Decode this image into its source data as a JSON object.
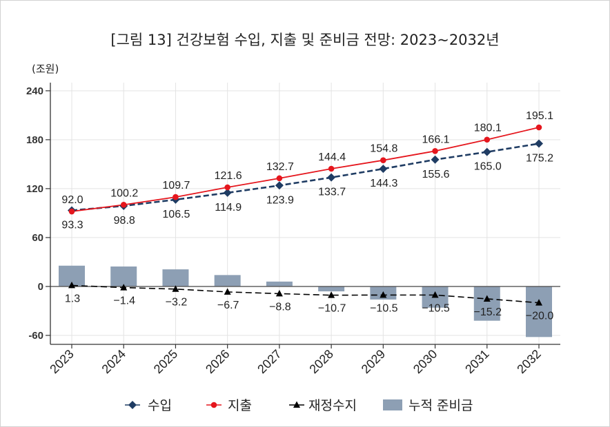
{
  "chart_data": {
    "type": "line",
    "title": "[그림 13] 건강보험 수입, 지출 및 준비금 전망: 2023~2032년",
    "xlabel": "",
    "ylabel": "(조원)",
    "categories": [
      "2023",
      "2024",
      "2025",
      "2026",
      "2027",
      "2028",
      "2029",
      "2030",
      "2031",
      "2032"
    ],
    "ylim": [
      -71,
      250
    ],
    "yticks": [
      240,
      180,
      120,
      60,
      0,
      -60
    ],
    "ytick_labels": [
      "240",
      "180",
      "120",
      "60",
      "0",
      "-60"
    ],
    "grid": true,
    "legend_position": "bottom",
    "series": [
      {
        "name": "수입",
        "type": "line",
        "marker": "diamond",
        "color": "#1f3c63",
        "values": [
          93.3,
          98.8,
          106.5,
          114.9,
          123.9,
          133.7,
          144.3,
          155.6,
          165.0,
          175.2
        ],
        "labels": [
          "93.3",
          "98.8",
          "106.5",
          "114.9",
          "123.9",
          "133.7",
          "144.3",
          "155.6",
          "165.0",
          "175.2"
        ]
      },
      {
        "name": "지출",
        "type": "line",
        "marker": "circle",
        "color": "#e5161d",
        "values": [
          92.0,
          100.2,
          109.7,
          121.6,
          132.7,
          144.4,
          154.8,
          166.1,
          180.1,
          195.1
        ],
        "labels": [
          "92.0",
          "100.2",
          "109.7",
          "121.6",
          "132.7",
          "144.4",
          "154.8",
          "166.1",
          "180.1",
          "195.1"
        ]
      },
      {
        "name": "재정수지",
        "type": "line",
        "marker": "triangle",
        "color": "#000000",
        "values": [
          1.3,
          -1.4,
          -3.2,
          -6.7,
          -8.8,
          -10.7,
          -10.5,
          -10.5,
          -15.2,
          -20.0
        ],
        "labels": [
          "1.3",
          "−1.4",
          "−3.2",
          "−6.7",
          "−8.8",
          "−10.7",
          "−10.5",
          "−10.5",
          "−15.2",
          "−20.0"
        ]
      },
      {
        "name": "누적 준비금",
        "type": "bar",
        "marker": "square",
        "color": "#8d9fb4",
        "values": [
          25.5,
          24.5,
          21,
          14,
          6,
          -6,
          -16,
          -26,
          -42,
          -62
        ]
      }
    ]
  }
}
